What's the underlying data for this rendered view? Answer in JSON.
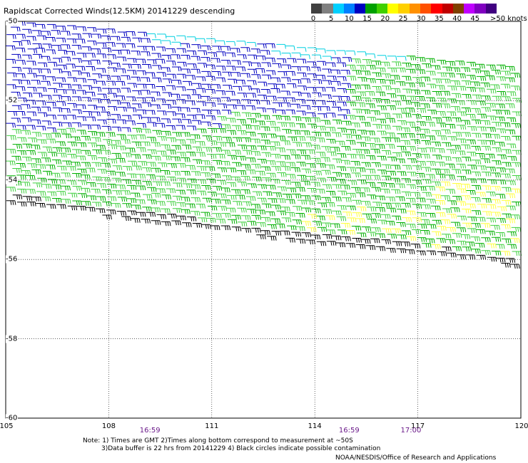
{
  "title": "Rapidscat Corrected Winds(12.5KM) 20141229 descending",
  "legend": {
    "labels": [
      "0",
      "5",
      "10",
      "15",
      "20",
      "25",
      "30",
      "35",
      "40",
      "45",
      ">50 knots"
    ],
    "colors": [
      "#404040",
      "#808080",
      "#00d0ff",
      "#0080ff",
      "#0000c0",
      "#00a000",
      "#40d000",
      "#ffff00",
      "#ffd000",
      "#ff9000",
      "#ff5000",
      "#ff0000",
      "#c00000",
      "#804000",
      "#c000ff",
      "#8000c0",
      "#400080"
    ]
  },
  "map": {
    "lon_range": [
      105,
      120
    ],
    "lat_range": [
      -60,
      -50
    ],
    "x_ticks": [
      "105",
      "108",
      "111",
      "114",
      "117",
      "120"
    ],
    "y_ticks": [
      "-50",
      "-52",
      "-54",
      "-56",
      "-58",
      "-60"
    ],
    "times": [
      {
        "label": "16:59",
        "lon": 109.2
      },
      {
        "label": "16:59",
        "lon": 115.0
      },
      {
        "label": "17:00",
        "lon": 116.8
      }
    ],
    "wind_colors": {
      "light": "#00d0e0",
      "blue": "#0000c0",
      "green": "#00b000",
      "lightgreen": "#40d040",
      "yellow": "#ffff40",
      "black": "#000000"
    }
  },
  "notes": {
    "line1": "Note: 1) Times are GMT 2)Times along bottom correspond to measurement at ~50S",
    "line2": "3)Data buffer is 22 hrs from 20141229 4) Black circles indicate possible contamination"
  },
  "credit": "NOAA/NESDIS/Office of Research and Applications"
}
